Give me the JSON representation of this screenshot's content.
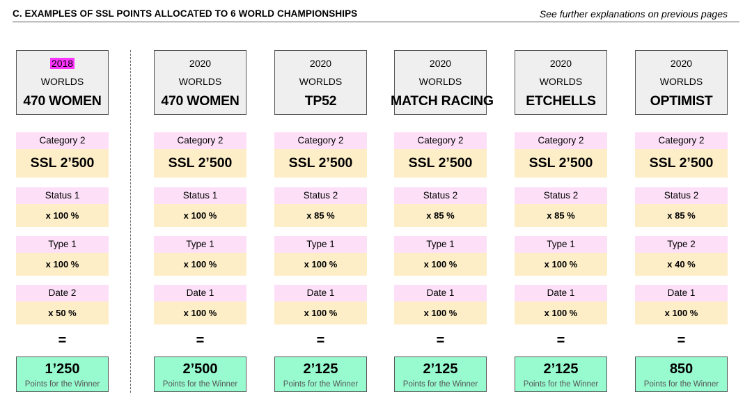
{
  "header": {
    "title": "C.   EXAMPLES OF SSL POINTS ALLOCATED TO 6 WORLD CHAMPIONSHIPS",
    "note": "See further explanations on previous pages"
  },
  "highlight_color": "#ff33ff",
  "columns": [
    {
      "year": "2018",
      "year_highlighted": true,
      "event": "WORLDS",
      "class": "470 WOMEN",
      "category": "Category 2",
      "ssl": "SSL 2’500",
      "status": "Status 1",
      "status_factor": "x 100 %",
      "type": "Type 1",
      "type_factor": "x 100 %",
      "date": "Date 2",
      "date_factor": "x 50 %",
      "equals": "=",
      "points": "1’250",
      "points_label": "Points for the Winner"
    },
    {
      "year": "2020",
      "year_highlighted": false,
      "event": "WORLDS",
      "class": "470 WOMEN",
      "category": "Category 2",
      "ssl": "SSL 2’500",
      "status": "Status 1",
      "status_factor": "x 100 %",
      "type": "Type 1",
      "type_factor": "x 100 %",
      "date": "Date 1",
      "date_factor": "x 100 %",
      "equals": "=",
      "points": "2’500",
      "points_label": "Points for the Winner"
    },
    {
      "year": "2020",
      "year_highlighted": false,
      "event": "WORLDS",
      "class": "TP52",
      "category": "Category 2",
      "ssl": "SSL 2’500",
      "status": "Status 2",
      "status_factor": "x 85 %",
      "type": "Type 1",
      "type_factor": "x 100 %",
      "date": "Date 1",
      "date_factor": "x 100 %",
      "equals": "=",
      "points": "2’125",
      "points_label": "Points for the Winner"
    },
    {
      "year": "2020",
      "year_highlighted": false,
      "event": "WORLDS",
      "class": "MATCH RACING",
      "category": "Category 2",
      "ssl": "SSL 2’500",
      "status": "Status 2",
      "status_factor": "x 85 %",
      "type": "Type 1",
      "type_factor": "x 100 %",
      "date": "Date 1",
      "date_factor": "x 100 %",
      "equals": "=",
      "points": "2’125",
      "points_label": "Points for the Winner"
    },
    {
      "year": "2020",
      "year_highlighted": false,
      "event": "WORLDS",
      "class": "ETCHELLS",
      "category": "Category 2",
      "ssl": "SSL 2’500",
      "status": "Status 2",
      "status_factor": "x 85 %",
      "type": "Type 1",
      "type_factor": "x 100 %",
      "date": "Date 1",
      "date_factor": "x 100 %",
      "equals": "=",
      "points": "2’125",
      "points_label": "Points for the Winner"
    },
    {
      "year": "2020",
      "year_highlighted": false,
      "event": "WORLDS",
      "class": "OPTIMIST",
      "category": "Category 2",
      "ssl": "SSL 2’500",
      "status": "Status 2",
      "status_factor": "x 85 %",
      "type": "Type 2",
      "type_factor": "x 40 %",
      "date": "Date 1",
      "date_factor": "x 100 %",
      "equals": "=",
      "points": "850",
      "points_label": "Points for the Winner"
    }
  ]
}
